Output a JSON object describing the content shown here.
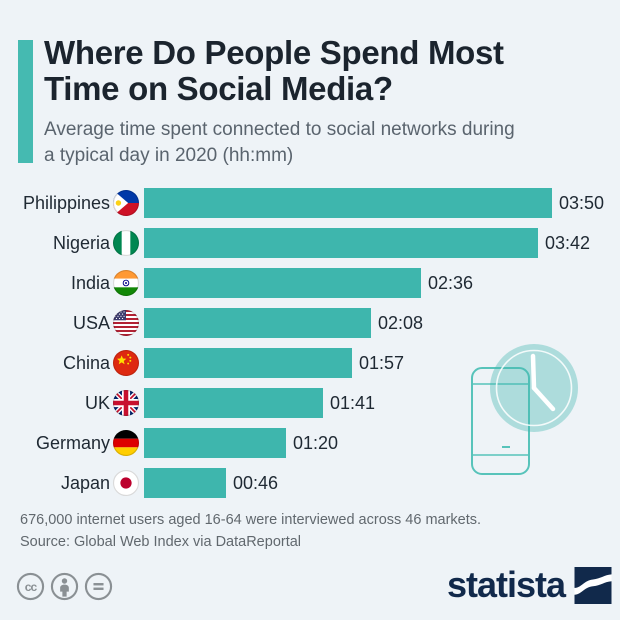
{
  "header": {
    "title_line1": "Where Do People Spend Most",
    "title_line2": "Time on Social Media?",
    "subtitle_line1": "Average time spent connected to social networks during",
    "subtitle_line2": "a typical day in 2020 (hh:mm)"
  },
  "chart_data": {
    "type": "bar",
    "orientation": "horizontal",
    "title": "Where Do People Spend Most Time on Social Media?",
    "unit": "hh:mm",
    "categories": [
      "Philippines",
      "Nigeria",
      "India",
      "USA",
      "China",
      "UK",
      "Germany",
      "Japan"
    ],
    "values": [
      "03:50",
      "03:42",
      "02:36",
      "02:08",
      "01:57",
      "01:41",
      "01:20",
      "00:46"
    ],
    "values_minutes": [
      230,
      222,
      156,
      128,
      117,
      101,
      80,
      46
    ],
    "flags": [
      "ph",
      "ng",
      "in",
      "us",
      "cn",
      "gb",
      "de",
      "jp"
    ],
    "xlim_minutes": [
      0,
      230
    ],
    "bar_color": "#3eb6ad",
    "grid": false,
    "legend": "none"
  },
  "footer": {
    "note": "676,000 internet users aged 16-64 were interviewed across 46 markets.",
    "source": "Source: Global Web Index via DataReportal"
  },
  "branding": {
    "logo_text": "statista",
    "license_icons": [
      "cc-icon",
      "attribution-icon",
      "no-derivatives-icon"
    ]
  },
  "colors": {
    "background": "#eef3f7",
    "bar": "#3eb6ad",
    "accent": "#45bab1",
    "title_text": "#1b242e",
    "subtitle_text": "#5a646e",
    "footer_text": "#61686e",
    "logo_navy": "#11294b",
    "license_gray": "#8a9094",
    "watermark_teal": "#57c3ba"
  }
}
